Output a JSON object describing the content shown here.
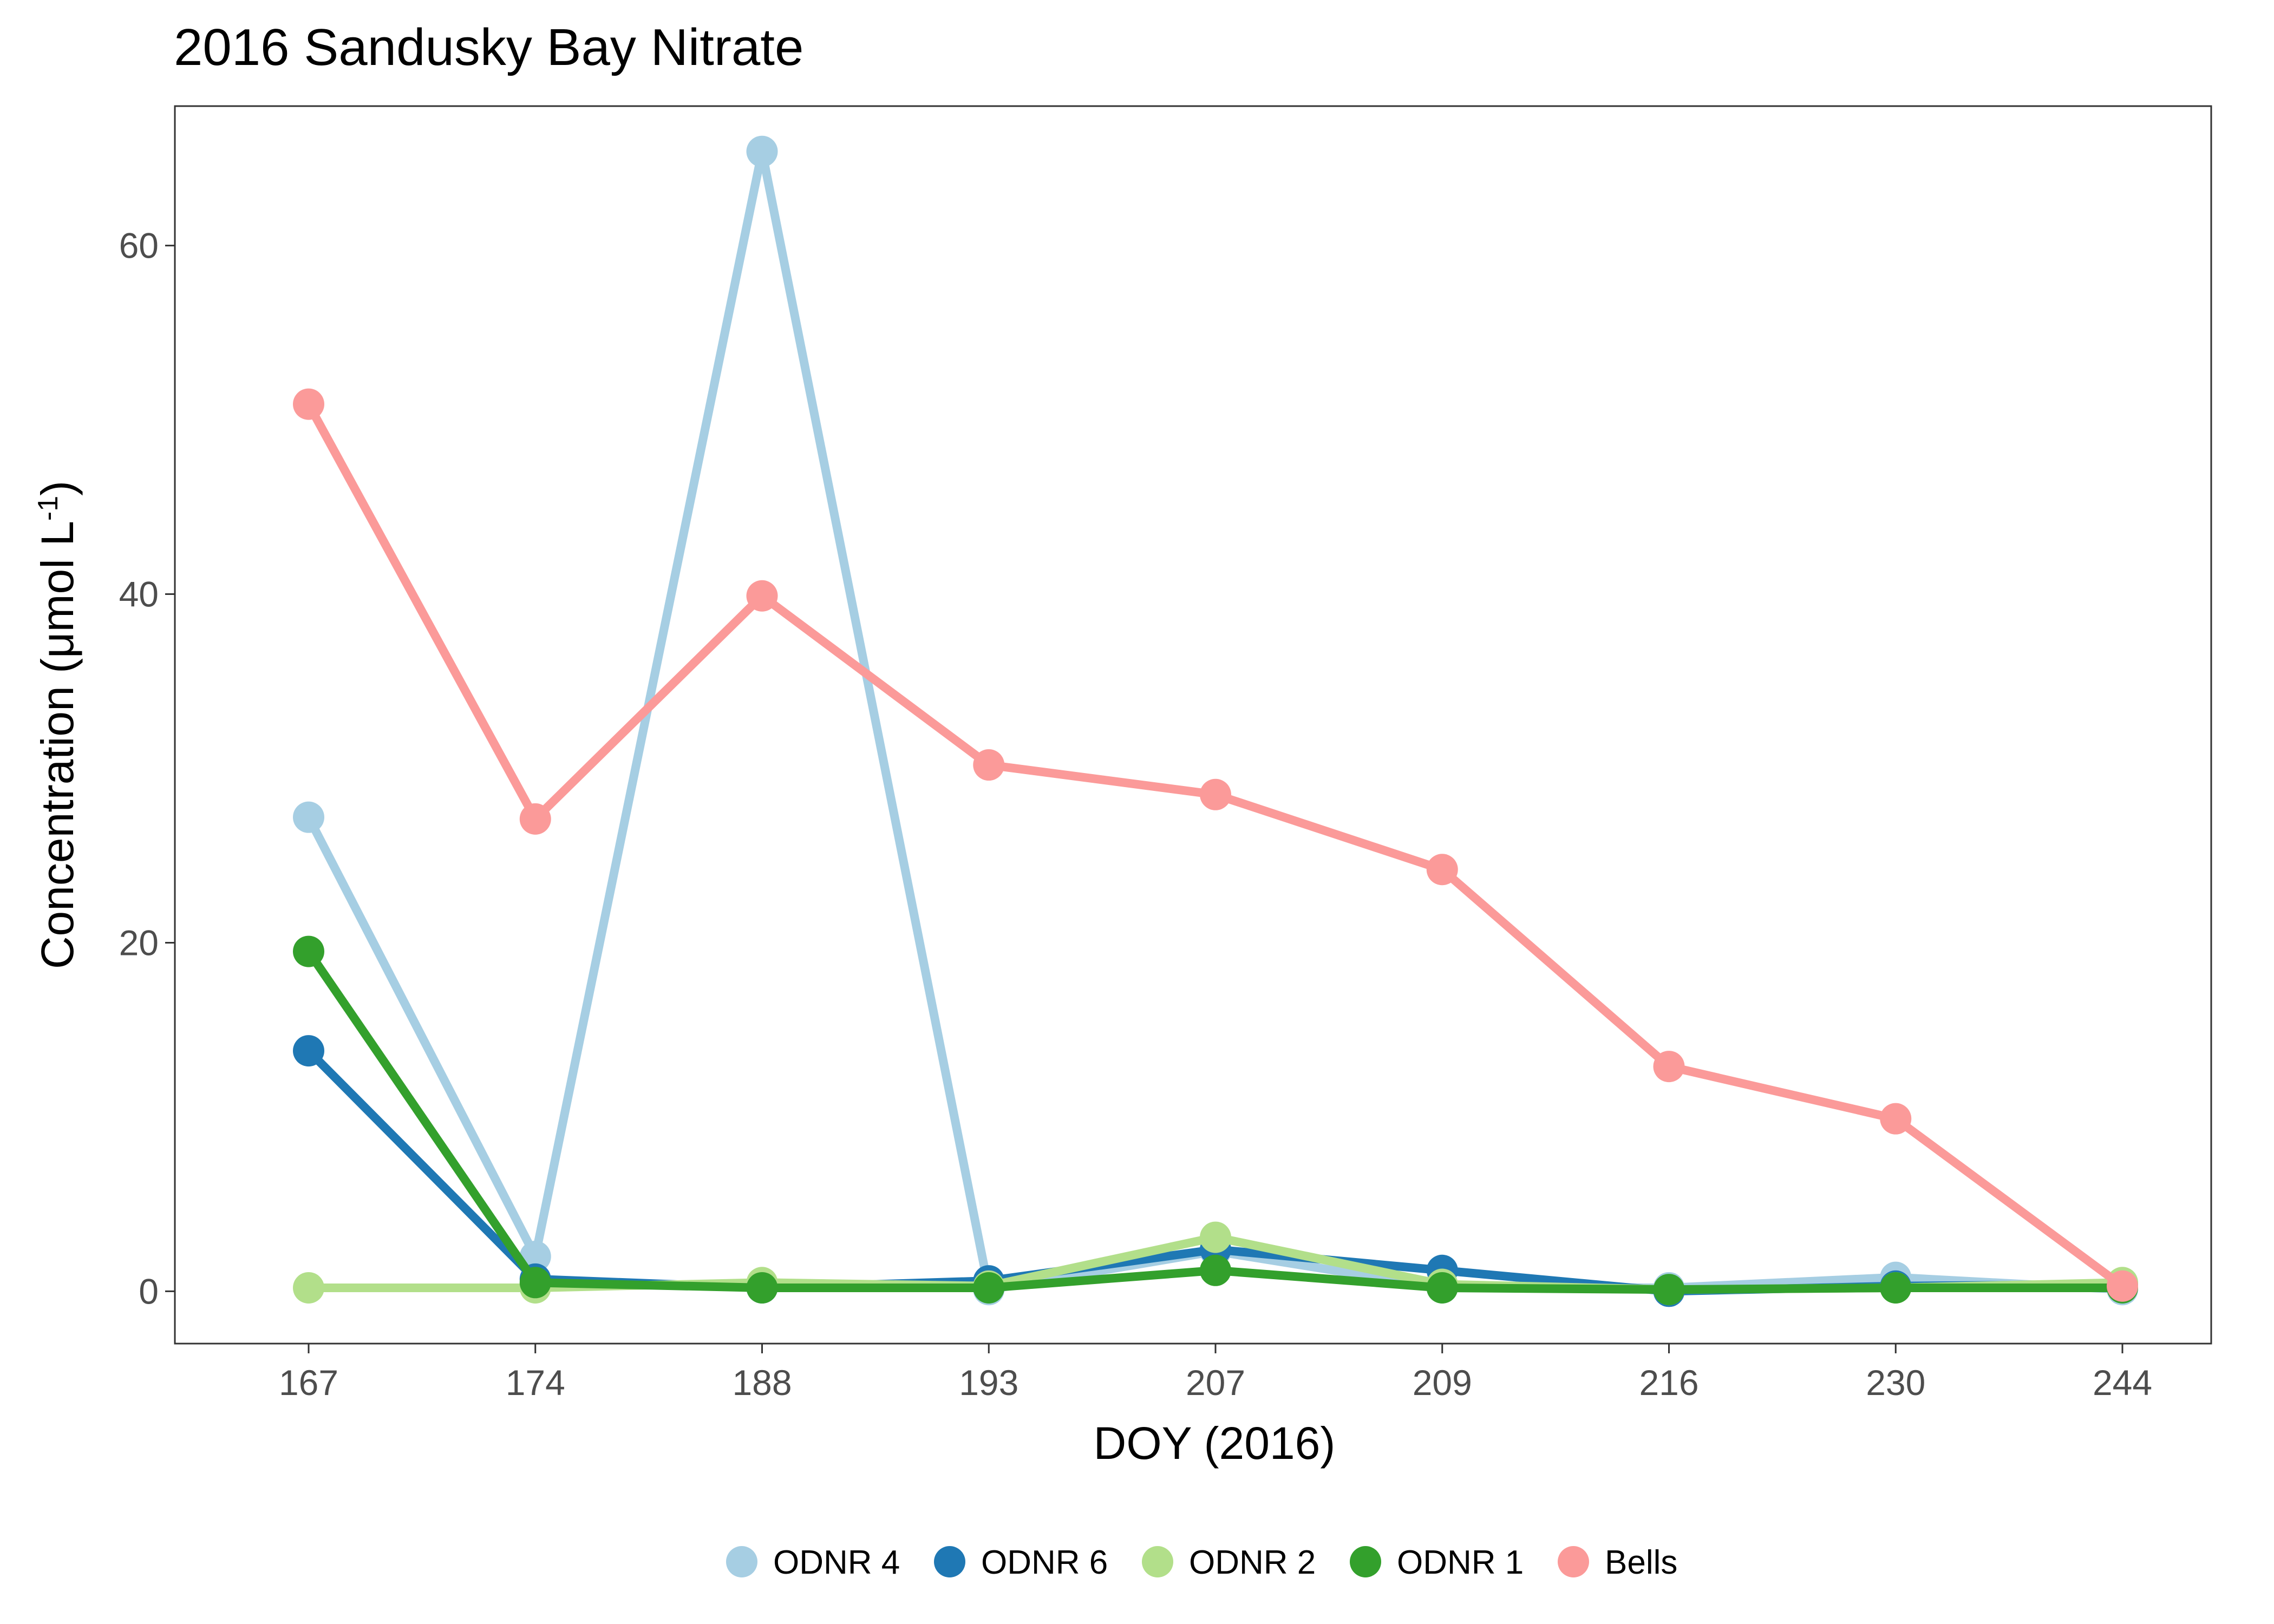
{
  "chart_data": {
    "type": "line",
    "title": "2016 Sandusky Bay Nitrate",
    "xlabel": "DOY (2016)",
    "ylabel_main": "Concentration (μmol L",
    "ylabel_sup": "-1",
    "ylabel_close": ")",
    "categories": [
      "167",
      "174",
      "188",
      "193",
      "207",
      "209",
      "216",
      "230",
      "244"
    ],
    "ylim": [
      -3,
      68
    ],
    "yticks": [
      0,
      20,
      40,
      60
    ],
    "grid": false,
    "legend_position": "bottom",
    "series": [
      {
        "name": "ODNR 4",
        "color": "#a6cee3",
        "values": [
          27.2,
          2.0,
          65.4,
          0.1,
          2.3,
          0.2,
          0.2,
          0.8,
          0.1
        ]
      },
      {
        "name": "ODNR 6",
        "color": "#1f78b4",
        "values": [
          13.8,
          0.7,
          0.2,
          0.6,
          2.4,
          1.2,
          0.0,
          0.3,
          0.4
        ]
      },
      {
        "name": "ODNR 2",
        "color": "#b2df8a",
        "values": [
          0.2,
          0.2,
          0.5,
          0.3,
          3.1,
          0.4,
          0.1,
          0.2,
          0.5
        ]
      },
      {
        "name": "ODNR 1",
        "color": "#33a02c",
        "values": [
          19.5,
          0.5,
          0.2,
          0.2,
          1.2,
          0.2,
          0.1,
          0.2,
          0.2
        ]
      },
      {
        "name": "Bells",
        "color": "#fb9a99",
        "values": [
          50.9,
          27.1,
          39.9,
          30.2,
          28.5,
          24.2,
          12.9,
          9.9,
          0.3
        ]
      }
    ]
  }
}
